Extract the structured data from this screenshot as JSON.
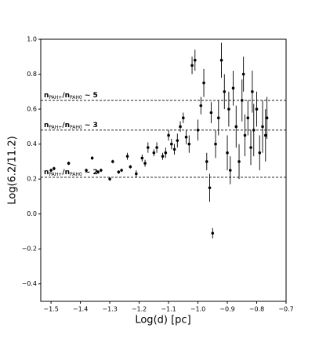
{
  "chart_data": {
    "type": "scatter",
    "xlabel": "Log(d) [pc]",
    "ylabel": "Log(6.2/11.2)",
    "xlim": [
      -1.535,
      -0.7
    ],
    "ylim": [
      -0.5,
      1.0
    ],
    "xticks": [
      {
        "value": -1.5,
        "label": "−1.5"
      },
      {
        "value": -1.4,
        "label": "−1.4"
      },
      {
        "value": -1.3,
        "label": "−1.3"
      },
      {
        "value": -1.2,
        "label": "−1.2"
      },
      {
        "value": -1.1,
        "label": "−1.1"
      },
      {
        "value": -1.0,
        "label": "−1.0"
      },
      {
        "value": -0.9,
        "label": "−0.9"
      },
      {
        "value": -0.8,
        "label": "−0.8"
      },
      {
        "value": -0.7,
        "label": "−0.7"
      }
    ],
    "yticks": [
      {
        "value": -0.4,
        "label": "−0.4"
      },
      {
        "value": -0.2,
        "label": "−0.2"
      },
      {
        "value": 0,
        "label": "0.0"
      },
      {
        "value": 0.2,
        "label": "0.2"
      },
      {
        "value": 0.4,
        "label": "0.4"
      },
      {
        "value": 0.6,
        "label": "0.6"
      },
      {
        "value": 0.8,
        "label": "0.8"
      },
      {
        "value": 1.0,
        "label": "1.0"
      }
    ],
    "color": "#000000",
    "x": [
      -1.5,
      -1.49,
      -1.44,
      -1.38,
      -1.36,
      -1.34,
      -1.33,
      -1.3,
      -1.29,
      -1.27,
      -1.26,
      -1.24,
      -1.23,
      -1.21,
      -1.19,
      -1.18,
      -1.17,
      -1.15,
      -1.14,
      -1.12,
      -1.11,
      -1.1,
      -1.09,
      -1.08,
      -1.07,
      -1.06,
      -1.05,
      -1.04,
      -1.03,
      -1.02,
      -1.01,
      -1.0,
      -0.99,
      -0.98,
      -0.97,
      -0.96,
      -0.955,
      -0.95,
      -0.94,
      -0.93,
      -0.92,
      -0.91,
      -0.9,
      -0.895,
      -0.89,
      -0.88,
      -0.87,
      -0.86,
      -0.85,
      -0.845,
      -0.84,
      -0.83,
      -0.82,
      -0.815,
      -0.81,
      -0.8,
      -0.79,
      -0.78,
      -0.77,
      -0.765
    ],
    "y": [
      0.25,
      0.26,
      0.29,
      0.25,
      0.32,
      0.24,
      0.25,
      0.2,
      0.3,
      0.24,
      0.25,
      0.33,
      0.27,
      0.23,
      0.32,
      0.29,
      0.38,
      0.35,
      0.38,
      0.33,
      0.35,
      0.45,
      0.4,
      0.37,
      0.42,
      0.5,
      0.55,
      0.44,
      0.4,
      0.85,
      0.88,
      0.48,
      0.62,
      0.75,
      0.3,
      0.15,
      0.58,
      -0.11,
      0.4,
      0.55,
      0.88,
      0.7,
      0.35,
      0.6,
      0.25,
      0.72,
      0.5,
      0.3,
      0.65,
      0.8,
      0.45,
      0.55,
      0.38,
      0.7,
      0.48,
      0.6,
      0.35,
      0.5,
      0.45,
      0.55
    ],
    "yerr": [
      0.01,
      0.01,
      0.01,
      0.01,
      0.01,
      0.01,
      0.01,
      0.01,
      0.01,
      0.01,
      0.01,
      0.02,
      0.01,
      0.02,
      0.02,
      0.02,
      0.03,
      0.02,
      0.03,
      0.02,
      0.03,
      0.03,
      0.03,
      0.03,
      0.04,
      0.03,
      0.03,
      0.04,
      0.05,
      0.05,
      0.06,
      0.06,
      0.05,
      0.08,
      0.05,
      0.08,
      0.06,
      0.03,
      0.08,
      0.1,
      0.1,
      0.1,
      0.1,
      0.1,
      0.08,
      0.1,
      0.12,
      0.1,
      0.12,
      0.1,
      0.12,
      0.1,
      0.1,
      0.12,
      0.15,
      0.1,
      0.1,
      0.15,
      0.15,
      0.12
    ],
    "hlines": [
      0.65,
      0.48,
      0.21
    ],
    "annotations": [
      {
        "y": 0.65,
        "parts": [
          "n",
          "PAH+",
          "/n",
          "PAH0",
          " ~ 5"
        ]
      },
      {
        "y": 0.48,
        "parts": [
          "n",
          "PAH+",
          "/n",
          "PAH0",
          " ~ 3"
        ]
      },
      {
        "y": 0.21,
        "parts": [
          "n",
          "PAH+",
          "/n",
          "PAH0",
          " ~ 2"
        ]
      }
    ]
  }
}
